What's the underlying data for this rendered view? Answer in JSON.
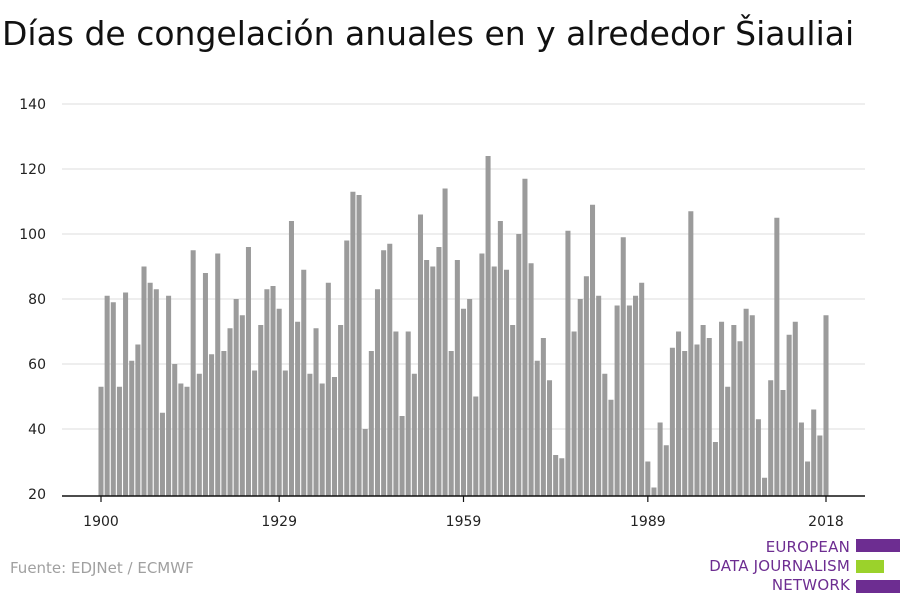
{
  "page": {
    "source": "Fuente: EDJNet / ECMWF",
    "logo": {
      "lines": [
        "EUROPEAN",
        "DATA JOURNALISM",
        "NETWORK"
      ],
      "colors": {
        "primary": "#6d2d91",
        "accent": "#9bd22b"
      }
    }
  },
  "chart_data": {
    "type": "bar",
    "title": "Días de congelación anuales en y alrededor Šiauliai",
    "xlabel": "",
    "ylabel": "",
    "x_tick_labels": [
      1900,
      1929,
      1959,
      1989,
      2018
    ],
    "y_ticks": [
      20,
      40,
      60,
      80,
      100,
      120,
      140
    ],
    "ylim": [
      20,
      140
    ],
    "xlim": [
      1900,
      2018
    ],
    "grid": true,
    "bar_color": "#9b9b9b",
    "x": [
      1900,
      1901,
      1902,
      1903,
      1904,
      1905,
      1906,
      1907,
      1908,
      1909,
      1910,
      1911,
      1912,
      1913,
      1914,
      1915,
      1916,
      1917,
      1918,
      1919,
      1920,
      1921,
      1922,
      1923,
      1924,
      1925,
      1926,
      1927,
      1928,
      1929,
      1930,
      1931,
      1932,
      1933,
      1934,
      1935,
      1936,
      1937,
      1938,
      1939,
      1940,
      1941,
      1942,
      1943,
      1944,
      1945,
      1946,
      1947,
      1948,
      1949,
      1950,
      1951,
      1952,
      1953,
      1954,
      1955,
      1956,
      1957,
      1958,
      1959,
      1960,
      1961,
      1962,
      1963,
      1964,
      1965,
      1966,
      1967,
      1968,
      1969,
      1970,
      1971,
      1972,
      1973,
      1974,
      1975,
      1976,
      1977,
      1978,
      1979,
      1980,
      1981,
      1982,
      1983,
      1984,
      1985,
      1986,
      1987,
      1988,
      1989,
      1990,
      1991,
      1992,
      1993,
      1994,
      1995,
      1996,
      1997,
      1998,
      1999,
      2000,
      2001,
      2002,
      2003,
      2004,
      2005,
      2006,
      2007,
      2008,
      2009,
      2010,
      2011,
      2012,
      2013,
      2014,
      2015,
      2016,
      2017,
      2018
    ],
    "values": [
      53,
      81,
      79,
      53,
      82,
      61,
      66,
      90,
      85,
      83,
      45,
      81,
      60,
      54,
      53,
      95,
      57,
      88,
      63,
      94,
      64,
      71,
      80,
      75,
      96,
      58,
      72,
      83,
      84,
      77,
      58,
      104,
      73,
      89,
      57,
      71,
      54,
      85,
      56,
      72,
      98,
      113,
      112,
      40,
      64,
      83,
      95,
      97,
      70,
      44,
      70,
      57,
      106,
      92,
      90,
      96,
      114,
      64,
      92,
      77,
      80,
      50,
      94,
      124,
      90,
      104,
      89,
      72,
      100,
      117,
      91,
      61,
      68,
      55,
      32,
      31,
      101,
      70,
      80,
      87,
      109,
      81,
      57,
      49,
      78,
      99,
      78,
      81,
      85,
      30,
      22,
      42,
      35,
      65,
      70,
      64,
      107,
      66,
      72,
      68,
      36,
      73,
      53,
      72,
      67,
      77,
      75,
      43,
      25,
      55,
      105,
      52,
      69,
      73,
      42,
      30,
      46,
      38,
      75
    ]
  }
}
